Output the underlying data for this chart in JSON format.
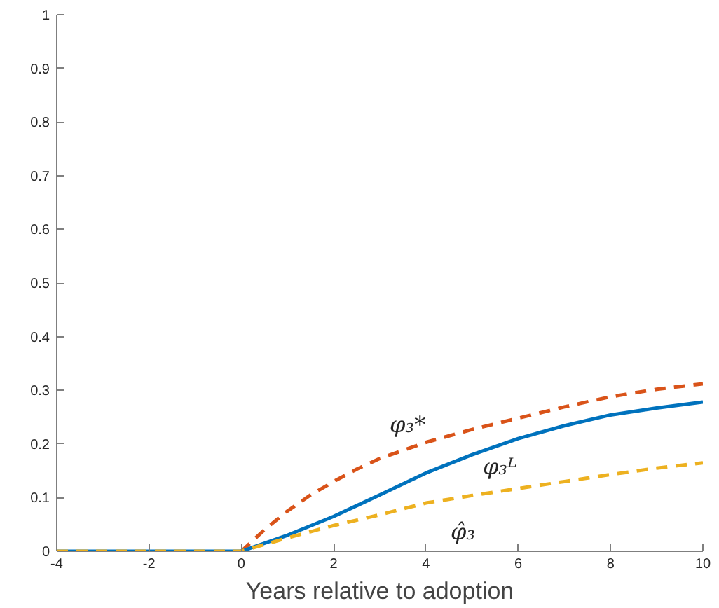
{
  "chart_data": {
    "type": "line",
    "xlabel": "Years relative to adoption",
    "xlim": [
      -4,
      10
    ],
    "ylim": [
      0,
      1
    ],
    "xticks": [
      -4,
      -2,
      0,
      2,
      4,
      6,
      8,
      10
    ],
    "yticks": [
      0,
      0.1,
      0.2,
      0.3,
      0.4,
      0.5,
      0.6,
      0.7,
      0.8,
      0.9,
      1
    ],
    "grid": false,
    "marker": "none",
    "series": [
      {
        "name": "φ₃*",
        "color": "#d95319",
        "line_style": "dashed",
        "x": [
          0,
          0.5,
          1,
          1.5,
          2,
          2.5,
          3,
          4,
          5,
          6,
          7,
          8,
          9,
          10
        ],
        "values": [
          0,
          0.04,
          0.075,
          0.105,
          0.13,
          0.153,
          0.173,
          0.203,
          0.227,
          0.248,
          0.269,
          0.288,
          0.302,
          0.312
        ]
      },
      {
        "name": "φ₃ᴸ",
        "color": "#0072bd",
        "line_style": "solid",
        "x": [
          -4,
          -3,
          -2,
          -1,
          0,
          1,
          2,
          2.5,
          3,
          4,
          5,
          6,
          7,
          8,
          9,
          10
        ],
        "values": [
          0,
          0,
          0,
          0,
          0,
          0.03,
          0.065,
          0.085,
          0.105,
          0.146,
          0.18,
          0.21,
          0.234,
          0.254,
          0.267,
          0.278
        ]
      },
      {
        "name": "φ̂₃",
        "color": "#edb120",
        "line_style": "dashed",
        "x": [
          -4,
          -3,
          -2,
          -1,
          0,
          1,
          2,
          2.5,
          3,
          4,
          5,
          6,
          7,
          8,
          9,
          10
        ],
        "values": [
          0,
          0,
          0,
          0,
          0,
          0.025,
          0.048,
          0.058,
          0.068,
          0.09,
          0.104,
          0.117,
          0.13,
          0.143,
          0.155,
          0.165
        ]
      }
    ]
  }
}
